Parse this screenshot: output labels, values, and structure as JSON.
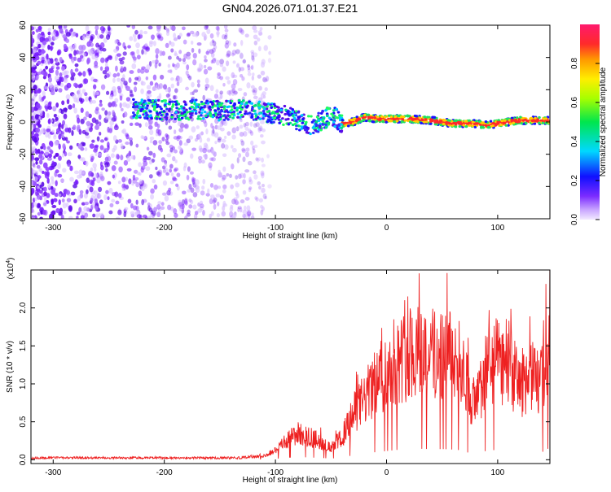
{
  "title": "GN04.2026.071.01.37.E21",
  "chart_data": [
    {
      "type": "heatmap",
      "xlabel": "Height of straight line (km)",
      "ylabel": "Frequency (Hz)",
      "xlim": [
        -320,
        147
      ],
      "ylim": [
        -60,
        60
      ],
      "x_ticks": [
        -300,
        -200,
        -100,
        0,
        100
      ],
      "y_ticks": [
        -60,
        -40,
        -20,
        0,
        20,
        40,
        60
      ],
      "colorbar": {
        "label": "Normalized spectral amplitude",
        "range": [
          0,
          1
        ],
        "ticks": [
          "0.0",
          "0.2",
          "0.4",
          "0.6",
          "0.8"
        ]
      },
      "trace": {
        "x": [
          -228,
          -210,
          -190,
          -170,
          -150,
          -130,
          -115,
          -100,
          -90,
          -80,
          -70,
          -60,
          -55,
          -50,
          -45,
          -40,
          -30,
          -20,
          -10,
          0,
          20,
          40,
          50,
          60,
          70,
          80,
          90,
          100,
          110,
          120,
          130,
          147
        ],
        "y": [
          8,
          8,
          7,
          8,
          7,
          8,
          7,
          5,
          4,
          1,
          -2,
          0,
          2,
          5,
          2,
          -1,
          0,
          3,
          2,
          2,
          2,
          1,
          0,
          -1,
          -1,
          -1,
          -2,
          -1,
          0,
          1,
          1,
          1
        ]
      }
    },
    {
      "type": "line",
      "xlabel": "Height of straight line (km)",
      "ylabel": "SNR (10 * v/v)",
      "y_multiplier": "(x10",
      "y_multiplier_exp": "4",
      "y_multiplier_close": ")",
      "xlim": [
        -320,
        147
      ],
      "ylim": [
        -0.05,
        2.5
      ],
      "x_ticks": [
        -300,
        -200,
        -100,
        0,
        100
      ],
      "y_ticks": [
        "0.0",
        "0.5",
        "1.0",
        "1.5",
        "2.0"
      ],
      "envelope": {
        "x": [
          -320,
          -130,
          -110,
          -100,
          -90,
          -80,
          -70,
          -60,
          -50,
          -40,
          -30,
          -20,
          -10,
          0,
          10,
          20,
          30,
          40,
          50,
          60,
          70,
          75,
          80,
          90,
          100,
          110,
          120,
          130,
          140,
          147
        ],
        "y": [
          0.02,
          0.03,
          0.05,
          0.12,
          0.25,
          0.35,
          0.3,
          0.25,
          0.15,
          0.3,
          0.6,
          0.8,
          1.0,
          1.15,
          1.3,
          1.4,
          1.45,
          1.4,
          1.4,
          1.35,
          1.2,
          0.8,
          0.7,
          1.2,
          1.3,
          1.2,
          1.0,
          1.1,
          1.0,
          1.6
        ]
      }
    }
  ]
}
